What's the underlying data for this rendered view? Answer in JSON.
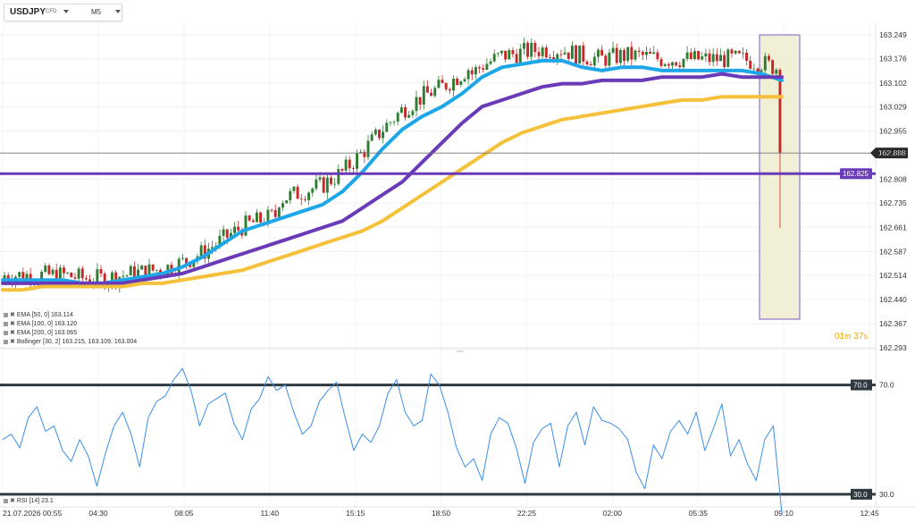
{
  "header": {
    "symbol": "USDJPY",
    "symbol_tag": "CFD",
    "timeframe": "M5"
  },
  "legend": [
    {
      "label": "EMA [50, 0] 163.114"
    },
    {
      "label": "EMA [100, 0] 163.120"
    },
    {
      "label": "EMA [200, 0] 163.065"
    },
    {
      "label": "Bollinger [30, 2] 163.215, 163.109, 163.004"
    }
  ],
  "rsi_legend": {
    "label": "RSI [14] 23.1"
  },
  "timer": {
    "minutes": "01",
    "m_unit": "m",
    "seconds": "37",
    "s_unit": "s"
  },
  "colors": {
    "up": "#2e7d32",
    "down": "#c62828",
    "ema50": "#1ea7e8",
    "ema100": "#6a3bb8",
    "ema200": "#f5c03a",
    "hline": "#6a3bb8",
    "rsi": "#3a8ee6"
  },
  "chart_data": [
    {
      "type": "candlestick",
      "title": "USDJPY",
      "y_ticks": [
        "163.249",
        "163.176",
        "163.102",
        "163.029",
        "162.955",
        "162.888",
        "162.808",
        "162.735",
        "162.661",
        "162.587",
        "162.514",
        "162.440",
        "162.367",
        "162.293"
      ],
      "ylim": [
        162.293,
        163.249
      ],
      "x_ticks": [
        "21.07.2026 00:55",
        "04:30",
        "08:05",
        "11:40",
        "15:15",
        "18:50",
        "22:25",
        "02:00",
        "05:35",
        "09:10",
        "12:45"
      ],
      "current_price": "162.888",
      "horizontal_line": {
        "value": 162.825,
        "label": "162.825"
      },
      "series": [
        {
          "name": "EMA [50, 0]",
          "values": [
            162.5,
            162.5,
            162.5,
            162.5,
            162.49,
            162.49,
            162.5,
            162.51,
            162.52,
            162.54,
            162.57,
            162.61,
            162.65,
            162.67,
            162.69,
            162.71,
            162.73,
            162.77,
            162.83,
            162.9,
            162.96,
            163.0,
            163.03,
            163.07,
            163.12,
            163.15,
            163.16,
            163.17,
            163.17,
            163.15,
            163.14,
            163.15,
            163.15,
            163.14,
            163.14,
            163.14,
            163.14,
            163.14,
            163.13,
            163.11
          ]
        },
        {
          "name": "EMA [100, 0]",
          "values": [
            162.49,
            162.49,
            162.49,
            162.49,
            162.49,
            162.49,
            162.49,
            162.5,
            162.51,
            162.52,
            162.54,
            162.56,
            162.58,
            162.6,
            162.62,
            162.64,
            162.66,
            162.68,
            162.72,
            162.76,
            162.8,
            162.86,
            162.92,
            162.98,
            163.03,
            163.05,
            163.07,
            163.09,
            163.1,
            163.1,
            163.11,
            163.11,
            163.11,
            163.12,
            163.12,
            163.12,
            163.13,
            163.12,
            163.12,
            163.12
          ]
        },
        {
          "name": "EMA [200, 0]",
          "values": [
            162.47,
            162.47,
            162.48,
            162.48,
            162.48,
            162.48,
            162.48,
            162.49,
            162.49,
            162.5,
            162.51,
            162.52,
            162.53,
            162.55,
            162.57,
            162.59,
            162.61,
            162.63,
            162.65,
            162.68,
            162.72,
            162.76,
            162.8,
            162.84,
            162.88,
            162.92,
            162.95,
            162.97,
            162.99,
            163.0,
            163.01,
            163.02,
            163.03,
            163.04,
            163.05,
            163.05,
            163.06,
            163.06,
            163.06,
            163.06
          ]
        }
      ]
    },
    {
      "type": "line",
      "title": "RSI [14]",
      "y_ticks": [
        "70.0",
        "30.0"
      ],
      "levels": [
        70,
        30
      ],
      "ylim": [
        27,
        80
      ],
      "series": [
        {
          "name": "RSI [14]",
          "values": [
            50,
            52,
            47,
            58,
            62,
            53,
            55,
            46,
            42,
            50,
            44,
            33,
            45,
            55,
            60,
            52,
            40,
            58,
            64,
            66,
            72,
            76,
            68,
            55,
            63,
            65,
            67,
            56,
            50,
            61,
            65,
            73,
            68,
            70,
            60,
            52,
            55,
            64,
            68,
            71,
            58,
            46,
            52,
            49,
            55,
            67,
            72,
            60,
            55,
            57,
            74,
            70,
            60,
            47,
            40,
            43,
            35,
            52,
            58,
            56,
            47,
            34,
            49,
            54,
            56,
            40,
            55,
            60,
            48,
            62,
            57,
            56,
            54,
            50,
            38,
            32,
            48,
            43,
            53,
            57,
            52,
            60,
            46,
            54,
            63,
            44,
            50,
            41,
            35,
            50,
            55,
            23
          ]
        }
      ]
    }
  ]
}
